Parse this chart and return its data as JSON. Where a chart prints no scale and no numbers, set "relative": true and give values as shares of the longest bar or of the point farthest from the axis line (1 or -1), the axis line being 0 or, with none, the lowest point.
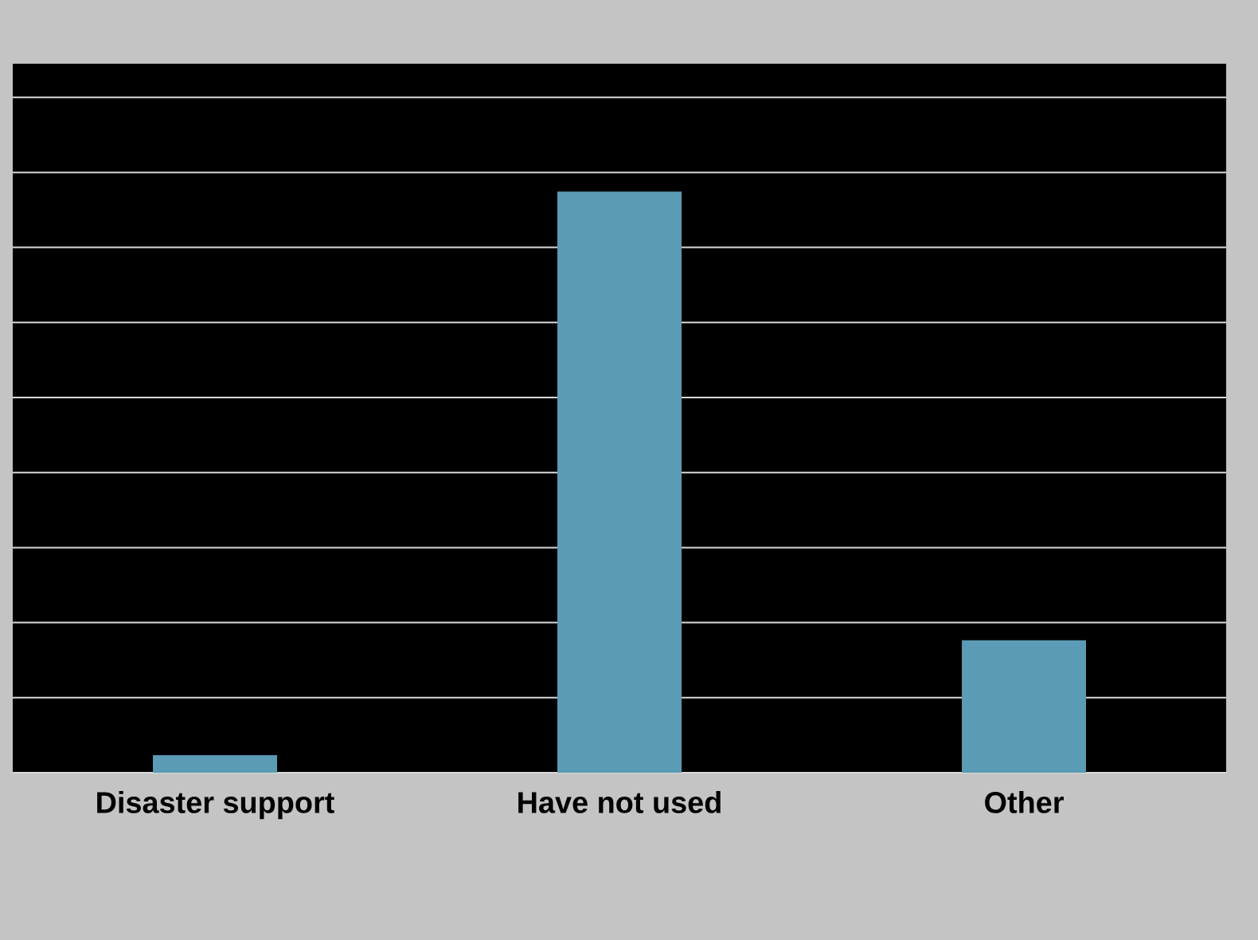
{
  "chart_data": {
    "type": "bar",
    "relative": true,
    "categories": [
      "Disaster support",
      "Have not used",
      "Other"
    ],
    "values": [
      0.03,
      1,
      0.228
    ],
    "color": "#5b9bb5",
    "grid": "y"
  }
}
